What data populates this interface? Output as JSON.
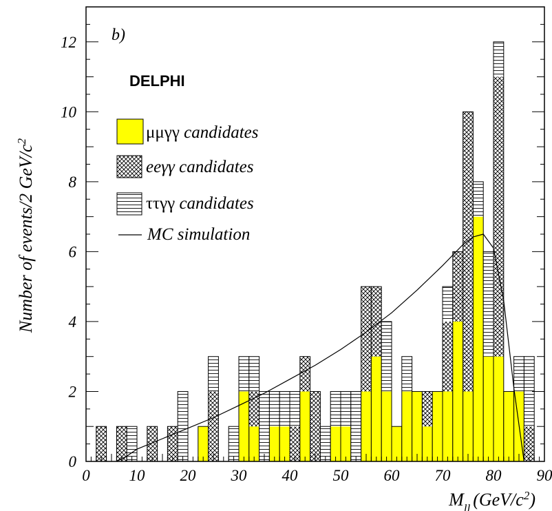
{
  "chart_data": {
    "type": "bar",
    "stacked": true,
    "panel_label": "b)",
    "experiment_label": "DELPHI",
    "xlabel": {
      "main": "M",
      "sub": "ll",
      "unit": "(GeV/c",
      "sup": "2",
      "close": ")"
    },
    "ylabel": {
      "main": "Number of events/2 GeV/c",
      "sup": "2"
    },
    "xlim": [
      0,
      90
    ],
    "ylim": [
      0,
      13
    ],
    "x_ticks": [
      0,
      10,
      20,
      30,
      40,
      50,
      60,
      70,
      80,
      90
    ],
    "y_ticks": [
      0,
      2,
      4,
      6,
      8,
      10,
      12
    ],
    "bin_width": 2,
    "bin_starts": [
      2,
      4,
      6,
      8,
      10,
      12,
      14,
      16,
      18,
      20,
      22,
      24,
      26,
      28,
      30,
      32,
      34,
      36,
      38,
      40,
      42,
      44,
      46,
      48,
      50,
      52,
      54,
      56,
      58,
      60,
      62,
      64,
      66,
      68,
      70,
      72,
      74,
      76,
      78,
      80,
      82,
      84,
      86
    ],
    "series": [
      {
        "name": "μμγγ candidates",
        "values": [
          0,
          0,
          0,
          0,
          0,
          0,
          0,
          0,
          0,
          0,
          1,
          0,
          0,
          0,
          2,
          1,
          0,
          1,
          1,
          0,
          2,
          0,
          0,
          1,
          1,
          0,
          2,
          3,
          2,
          1,
          2,
          2,
          1,
          2,
          2,
          4,
          2,
          7,
          3,
          3,
          2,
          2,
          0
        ]
      },
      {
        "name": "eeγγ candidates",
        "values": [
          1,
          0,
          1,
          0,
          0,
          1,
          0,
          1,
          0,
          0,
          0,
          2,
          0,
          0,
          0,
          1,
          0,
          0,
          0,
          1,
          1,
          2,
          0,
          0,
          0,
          0,
          3,
          2,
          0,
          0,
          0,
          0,
          1,
          0,
          2,
          2,
          8,
          0,
          0,
          8,
          0,
          0,
          1
        ]
      },
      {
        "name": "ττγγ candidates",
        "values": [
          0,
          0,
          0,
          1,
          0,
          0,
          0,
          0,
          2,
          0,
          0,
          1,
          0,
          1,
          1,
          1,
          2,
          1,
          1,
          1,
          0,
          0,
          1,
          1,
          1,
          2,
          0,
          0,
          2,
          0,
          1,
          0,
          0,
          0,
          1,
          0,
          0,
          1,
          3,
          1,
          0,
          1,
          2
        ]
      }
    ],
    "mc_simulation": {
      "name": "MC simulation",
      "x": [
        6,
        8,
        10,
        15,
        20,
        25,
        30,
        35,
        40,
        45,
        50,
        55,
        60,
        65,
        70,
        74,
        76,
        78,
        80,
        82,
        84,
        86
      ],
      "y": [
        0,
        0.15,
        0.35,
        0.65,
        0.95,
        1.25,
        1.6,
        1.95,
        2.35,
        2.75,
        3.2,
        3.7,
        4.25,
        4.9,
        5.6,
        6.2,
        6.42,
        6.5,
        6.1,
        4.6,
        2.1,
        0
      ]
    },
    "legend": {
      "placement": "left",
      "entries": [
        {
          "greek": "μμγγ",
          "text": " candidates"
        },
        {
          "greek": "eeγγ",
          "text": " candidates",
          "italic_prefix": true
        },
        {
          "greek": "ττγγ",
          "text": " candidates"
        },
        {
          "greek": "",
          "text": "MC simulation"
        }
      ]
    },
    "colors": {
      "mumu": "#ffff00",
      "frame": "#000000"
    }
  }
}
